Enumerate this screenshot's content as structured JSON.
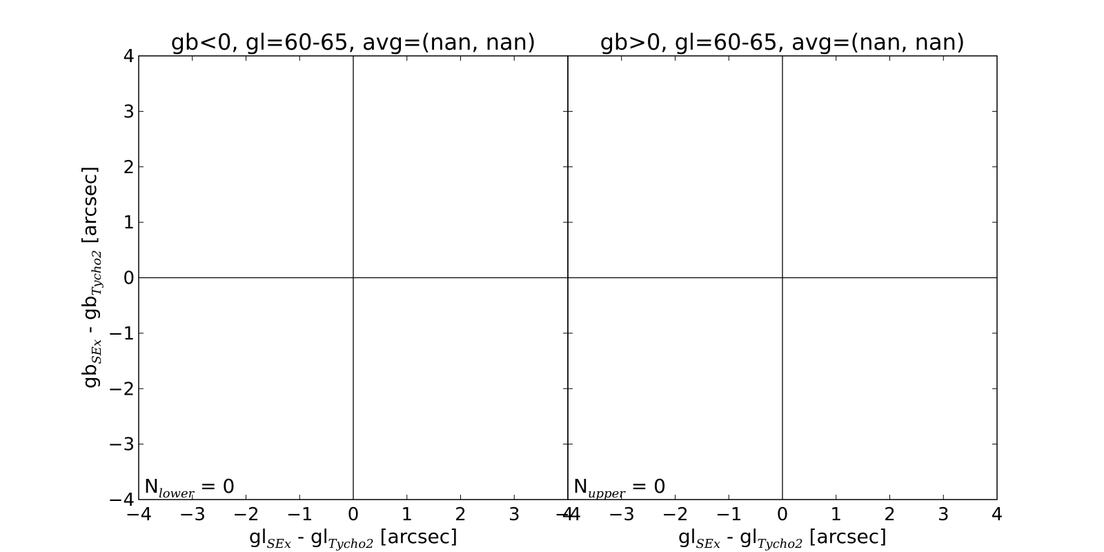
{
  "chart_data": [
    {
      "type": "scatter",
      "title": "gb<0, gl=60-65, avg=(nan, nan)",
      "xlabel": {
        "base": "gl",
        "sub1": "SEx",
        "mid": " - gl",
        "sub2": "Tycho2",
        "tail": " [arcsec]"
      },
      "ylabel": {
        "base": "gb",
        "sub1": "SEx",
        "mid": " - gb",
        "sub2": "Tycho2",
        "tail": " [arcsec]"
      },
      "xlim": [
        -4,
        4
      ],
      "ylim": [
        -4,
        4
      ],
      "xticks": [
        -4,
        -3,
        -2,
        -1,
        0,
        1,
        2,
        3,
        4
      ],
      "yticks": [
        -4,
        -3,
        -2,
        -1,
        0,
        1,
        2,
        3,
        4
      ],
      "xtick_labels": [
        "−4",
        "−3",
        "−2",
        "−1",
        "0",
        "1",
        "2",
        "3",
        "4"
      ],
      "ytick_labels": [
        "−4",
        "−3",
        "−2",
        "−1",
        "0",
        "1",
        "2",
        "3",
        "4"
      ],
      "reference_lines": {
        "x": 0,
        "y": 0
      },
      "points": [],
      "annotation": {
        "base": "N",
        "sub": "lower",
        "tail": " = 0"
      },
      "grid": false
    },
    {
      "type": "scatter",
      "title": "gb>0, gl=60-65, avg=(nan, nan)",
      "xlabel": {
        "base": "gl",
        "sub1": "SEx",
        "mid": " - gl",
        "sub2": "Tycho2",
        "tail": " [arcsec]"
      },
      "xlim": [
        -4,
        4
      ],
      "ylim": [
        -4,
        4
      ],
      "xticks": [
        -4,
        -3,
        -2,
        -1,
        0,
        1,
        2,
        3,
        4
      ],
      "yticks": [
        -4,
        -3,
        -2,
        -1,
        0,
        1,
        2,
        3,
        4
      ],
      "xtick_labels": [
        "−4",
        "−3",
        "−2",
        "−1",
        "0",
        "1",
        "2",
        "3",
        "4"
      ],
      "reference_lines": {
        "x": 0,
        "y": 0
      },
      "points": [],
      "annotation": {
        "base": "N",
        "sub": "upper",
        "tail": " = 0"
      },
      "grid": false
    }
  ]
}
